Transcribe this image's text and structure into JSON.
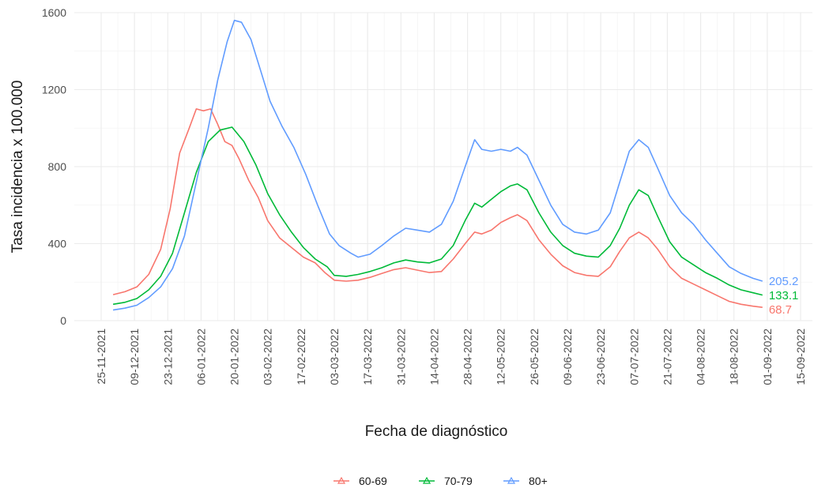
{
  "chart_data": {
    "type": "line",
    "title": "",
    "xlabel": "Fecha de diagnóstico",
    "ylabel": "Tasa incidencia x 100.000",
    "ylim": [
      0,
      1600
    ],
    "y_ticks": [
      0,
      400,
      800,
      1200,
      1600
    ],
    "x_range": [
      "2021-11-25",
      "2022-09-15"
    ],
    "x_ticks": [
      "25-11-2021",
      "09-12-2021",
      "23-12-2021",
      "06-01-2022",
      "20-01-2022",
      "03-02-2022",
      "17-02-2022",
      "03-03-2022",
      "17-03-2022",
      "31-03-2022",
      "14-04-2022",
      "28-04-2022",
      "12-05-2022",
      "26-05-2022",
      "09-06-2022",
      "23-06-2022",
      "07-07-2022",
      "21-07-2022",
      "04-08-2022",
      "18-08-2022",
      "01-09-2022",
      "15-09-2022"
    ],
    "grid": true,
    "legend_position": "bottom",
    "series": [
      {
        "name": "60-69",
        "color": "#F8766D",
        "end_label": "68.7",
        "points": [
          [
            "2021-11-30",
            135
          ],
          [
            "2021-12-05",
            150
          ],
          [
            "2021-12-10",
            175
          ],
          [
            "2021-12-15",
            240
          ],
          [
            "2021-12-20",
            370
          ],
          [
            "2021-12-24",
            580
          ],
          [
            "2021-12-28",
            870
          ],
          [
            "2022-01-01",
            1000
          ],
          [
            "2022-01-04",
            1100
          ],
          [
            "2022-01-07",
            1090
          ],
          [
            "2022-01-10",
            1100
          ],
          [
            "2022-01-13",
            1020
          ],
          [
            "2022-01-16",
            930
          ],
          [
            "2022-01-19",
            910
          ],
          [
            "2022-01-22",
            840
          ],
          [
            "2022-01-26",
            730
          ],
          [
            "2022-01-30",
            640
          ],
          [
            "2022-02-03",
            520
          ],
          [
            "2022-02-08",
            430
          ],
          [
            "2022-02-13",
            380
          ],
          [
            "2022-02-18",
            330
          ],
          [
            "2022-02-23",
            300
          ],
          [
            "2022-02-27",
            250
          ],
          [
            "2022-03-03",
            210
          ],
          [
            "2022-03-08",
            205
          ],
          [
            "2022-03-13",
            210
          ],
          [
            "2022-03-18",
            225
          ],
          [
            "2022-03-23",
            245
          ],
          [
            "2022-03-28",
            265
          ],
          [
            "2022-04-02",
            275
          ],
          [
            "2022-04-07",
            262
          ],
          [
            "2022-04-12",
            250
          ],
          [
            "2022-04-17",
            255
          ],
          [
            "2022-04-22",
            320
          ],
          [
            "2022-04-27",
            400
          ],
          [
            "2022-05-01",
            460
          ],
          [
            "2022-05-04",
            450
          ],
          [
            "2022-05-08",
            470
          ],
          [
            "2022-05-12",
            510
          ],
          [
            "2022-05-16",
            535
          ],
          [
            "2022-05-19",
            550
          ],
          [
            "2022-05-23",
            520
          ],
          [
            "2022-05-28",
            420
          ],
          [
            "2022-06-02",
            345
          ],
          [
            "2022-06-07",
            285
          ],
          [
            "2022-06-12",
            250
          ],
          [
            "2022-06-17",
            235
          ],
          [
            "2022-06-22",
            230
          ],
          [
            "2022-06-27",
            280
          ],
          [
            "2022-07-01",
            360
          ],
          [
            "2022-07-05",
            430
          ],
          [
            "2022-07-09",
            460
          ],
          [
            "2022-07-13",
            430
          ],
          [
            "2022-07-17",
            370
          ],
          [
            "2022-07-22",
            280
          ],
          [
            "2022-07-27",
            220
          ],
          [
            "2022-08-01",
            190
          ],
          [
            "2022-08-06",
            160
          ],
          [
            "2022-08-11",
            130
          ],
          [
            "2022-08-16",
            100
          ],
          [
            "2022-08-21",
            85
          ],
          [
            "2022-08-26",
            75
          ],
          [
            "2022-08-30",
            69
          ]
        ]
      },
      {
        "name": "70-79",
        "color": "#00BA38",
        "end_label": "133.1",
        "points": [
          [
            "2021-11-30",
            85
          ],
          [
            "2021-12-05",
            95
          ],
          [
            "2021-12-10",
            115
          ],
          [
            "2021-12-15",
            160
          ],
          [
            "2021-12-20",
            230
          ],
          [
            "2021-12-25",
            350
          ],
          [
            "2021-12-30",
            560
          ],
          [
            "2022-01-04",
            770
          ],
          [
            "2022-01-09",
            930
          ],
          [
            "2022-01-14",
            990
          ],
          [
            "2022-01-19",
            1005
          ],
          [
            "2022-01-24",
            930
          ],
          [
            "2022-01-29",
            810
          ],
          [
            "2022-02-03",
            660
          ],
          [
            "2022-02-08",
            550
          ],
          [
            "2022-02-13",
            460
          ],
          [
            "2022-02-18",
            380
          ],
          [
            "2022-02-23",
            320
          ],
          [
            "2022-02-28",
            280
          ],
          [
            "2022-03-03",
            235
          ],
          [
            "2022-03-08",
            230
          ],
          [
            "2022-03-13",
            240
          ],
          [
            "2022-03-18",
            255
          ],
          [
            "2022-03-23",
            275
          ],
          [
            "2022-03-28",
            300
          ],
          [
            "2022-04-02",
            315
          ],
          [
            "2022-04-07",
            305
          ],
          [
            "2022-04-12",
            300
          ],
          [
            "2022-04-17",
            320
          ],
          [
            "2022-04-22",
            390
          ],
          [
            "2022-04-27",
            520
          ],
          [
            "2022-05-01",
            610
          ],
          [
            "2022-05-04",
            590
          ],
          [
            "2022-05-08",
            630
          ],
          [
            "2022-05-12",
            670
          ],
          [
            "2022-05-16",
            700
          ],
          [
            "2022-05-19",
            710
          ],
          [
            "2022-05-23",
            680
          ],
          [
            "2022-05-28",
            560
          ],
          [
            "2022-06-02",
            460
          ],
          [
            "2022-06-07",
            390
          ],
          [
            "2022-06-12",
            350
          ],
          [
            "2022-06-17",
            335
          ],
          [
            "2022-06-22",
            330
          ],
          [
            "2022-06-27",
            390
          ],
          [
            "2022-07-01",
            480
          ],
          [
            "2022-07-05",
            600
          ],
          [
            "2022-07-09",
            680
          ],
          [
            "2022-07-13",
            650
          ],
          [
            "2022-07-17",
            540
          ],
          [
            "2022-07-22",
            410
          ],
          [
            "2022-07-27",
            330
          ],
          [
            "2022-08-01",
            290
          ],
          [
            "2022-08-06",
            250
          ],
          [
            "2022-08-11",
            220
          ],
          [
            "2022-08-16",
            185
          ],
          [
            "2022-08-21",
            160
          ],
          [
            "2022-08-26",
            145
          ],
          [
            "2022-08-30",
            133
          ]
        ]
      },
      {
        "name": "80+",
        "color": "#619CFF",
        "end_label": "205.2",
        "points": [
          [
            "2021-11-30",
            55
          ],
          [
            "2021-12-05",
            65
          ],
          [
            "2021-12-10",
            80
          ],
          [
            "2021-12-15",
            120
          ],
          [
            "2021-12-20",
            175
          ],
          [
            "2021-12-25",
            270
          ],
          [
            "2021-12-30",
            440
          ],
          [
            "2022-01-04",
            720
          ],
          [
            "2022-01-09",
            1000
          ],
          [
            "2022-01-13",
            1250
          ],
          [
            "2022-01-17",
            1450
          ],
          [
            "2022-01-20",
            1560
          ],
          [
            "2022-01-23",
            1550
          ],
          [
            "2022-01-27",
            1460
          ],
          [
            "2022-01-31",
            1300
          ],
          [
            "2022-02-04",
            1140
          ],
          [
            "2022-02-09",
            1010
          ],
          [
            "2022-02-14",
            900
          ],
          [
            "2022-02-19",
            760
          ],
          [
            "2022-02-24",
            600
          ],
          [
            "2022-03-01",
            450
          ],
          [
            "2022-03-05",
            390
          ],
          [
            "2022-03-10",
            350
          ],
          [
            "2022-03-13",
            330
          ],
          [
            "2022-03-18",
            345
          ],
          [
            "2022-03-23",
            390
          ],
          [
            "2022-03-28",
            440
          ],
          [
            "2022-04-02",
            480
          ],
          [
            "2022-04-07",
            470
          ],
          [
            "2022-04-12",
            460
          ],
          [
            "2022-04-17",
            500
          ],
          [
            "2022-04-22",
            620
          ],
          [
            "2022-04-27",
            800
          ],
          [
            "2022-05-01",
            940
          ],
          [
            "2022-05-04",
            890
          ],
          [
            "2022-05-08",
            880
          ],
          [
            "2022-05-12",
            890
          ],
          [
            "2022-05-16",
            880
          ],
          [
            "2022-05-19",
            900
          ],
          [
            "2022-05-23",
            860
          ],
          [
            "2022-05-28",
            730
          ],
          [
            "2022-06-02",
            600
          ],
          [
            "2022-06-07",
            500
          ],
          [
            "2022-06-12",
            460
          ],
          [
            "2022-06-17",
            450
          ],
          [
            "2022-06-22",
            470
          ],
          [
            "2022-06-27",
            560
          ],
          [
            "2022-07-01",
            720
          ],
          [
            "2022-07-05",
            880
          ],
          [
            "2022-07-09",
            940
          ],
          [
            "2022-07-13",
            900
          ],
          [
            "2022-07-17",
            790
          ],
          [
            "2022-07-22",
            650
          ],
          [
            "2022-07-27",
            560
          ],
          [
            "2022-08-01",
            500
          ],
          [
            "2022-08-06",
            420
          ],
          [
            "2022-08-11",
            350
          ],
          [
            "2022-08-16",
            280
          ],
          [
            "2022-08-21",
            245
          ],
          [
            "2022-08-26",
            220
          ],
          [
            "2022-08-30",
            205
          ]
        ]
      }
    ]
  }
}
